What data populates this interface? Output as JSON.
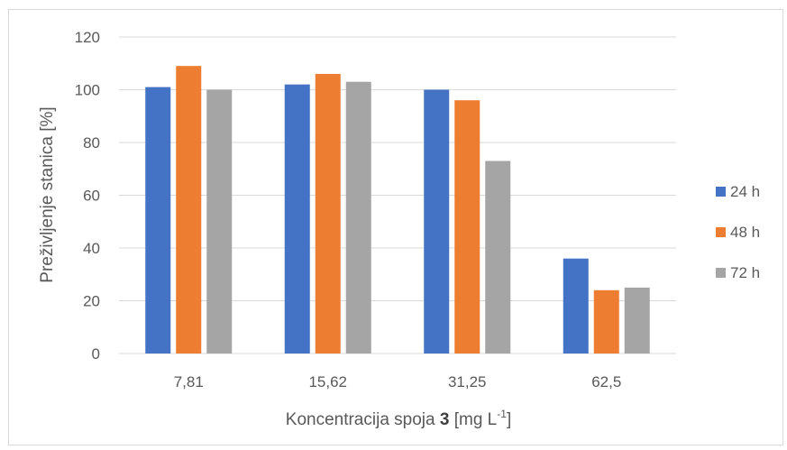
{
  "chart_data": {
    "type": "bar",
    "title": "",
    "xlabel": {
      "prefix": "Koncentracija spoja ",
      "bold": "3",
      "mid": " [mg L",
      "sup": "-1",
      "suffix": "]"
    },
    "ylabel": "Preživljenje stanica [%]",
    "ylim": [
      0,
      120
    ],
    "yticks": [
      0,
      20,
      40,
      60,
      80,
      100,
      120
    ],
    "categories": [
      "7,81",
      "15,62",
      "31,25",
      "62,5"
    ],
    "series": [
      {
        "name": "24 h",
        "color": "#4472c4",
        "values": [
          101,
          102,
          100,
          36
        ]
      },
      {
        "name": "48 h",
        "color": "#ed7d31",
        "values": [
          109,
          106,
          96,
          24
        ]
      },
      {
        "name": "72 h",
        "color": "#a5a5a5",
        "values": [
          100,
          103,
          73,
          25
        ]
      }
    ],
    "grid": true,
    "legend_position": "right"
  }
}
